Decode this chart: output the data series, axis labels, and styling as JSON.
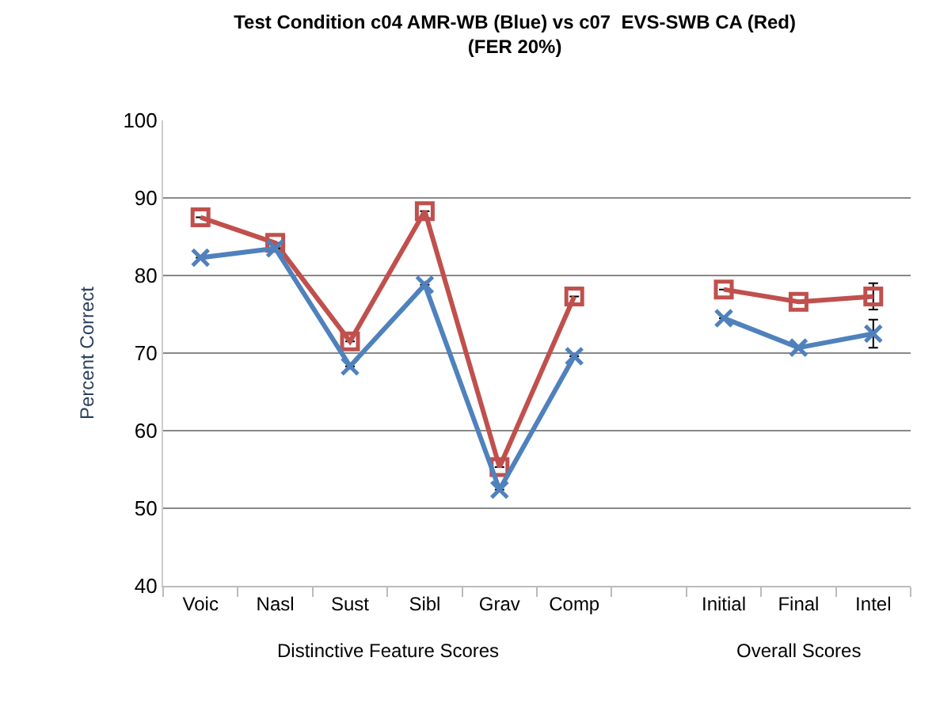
{
  "chart_data": {
    "type": "line",
    "title": "Test Condition c04 AMR-WB (Blue) vs c07  EVS-SWB CA (Red)",
    "subtitle": "(FER 20%)",
    "ylabel": "Percent Correct",
    "categories": [
      "Voic",
      "Nasl",
      "Sust",
      "Sibl",
      "Grav",
      "Comp",
      null,
      "Initial",
      "Final",
      "Intel"
    ],
    "series": [
      {
        "color": "#4f81bd",
        "marker": "cross",
        "values": [
          82.3,
          83.5,
          68.3,
          78.8,
          52.4,
          69.6,
          null,
          74.5,
          70.7,
          72.5
        ],
        "errors": [
          null,
          null,
          null,
          null,
          null,
          null,
          null,
          null,
          null,
          1.8
        ]
      },
      {
        "color": "#c0504d",
        "marker": "square",
        "values": [
          87.5,
          84.2,
          71.5,
          88.3,
          55.3,
          77.3,
          null,
          78.2,
          76.6,
          77.3
        ],
        "errors": [
          null,
          null,
          null,
          null,
          null,
          null,
          null,
          null,
          null,
          1.7
        ]
      }
    ],
    "ylim": [
      40,
      100
    ],
    "yticks": [
      40,
      50,
      60,
      70,
      80,
      90,
      100
    ],
    "grid": "y",
    "annotations": [
      "Distinctive Feature Scores",
      "Overall Scores"
    ]
  }
}
